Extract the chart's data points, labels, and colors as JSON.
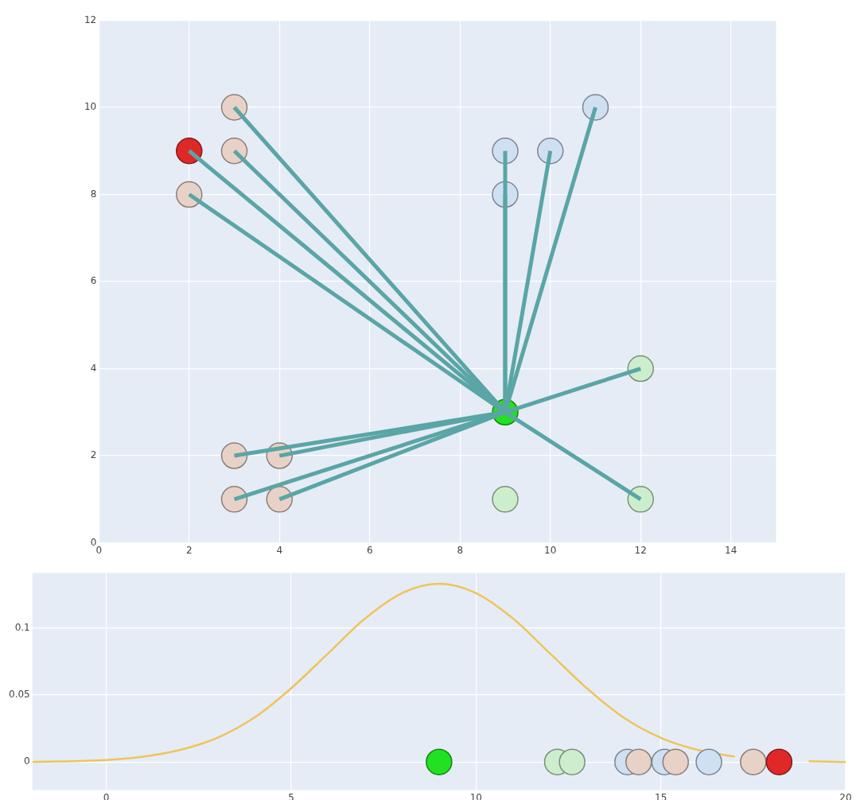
{
  "chart_data": [
    {
      "type": "scatter",
      "xlim": [
        0,
        15
      ],
      "ylim": [
        0,
        12
      ],
      "xticks": [
        0,
        2,
        4,
        6,
        8,
        10,
        12,
        14
      ],
      "yticks": [
        0,
        2,
        4,
        6,
        8,
        10,
        12
      ],
      "grid": true,
      "legend": false,
      "series": [
        {
          "marker": "circle",
          "color": "#e8d2c8",
          "x": [
            3,
            3,
            2,
            3,
            4,
            3,
            4
          ],
          "values": [
            10,
            9,
            8,
            2,
            2,
            1,
            1
          ]
        },
        {
          "marker": "circle",
          "color": "#e02828",
          "x": [
            2
          ],
          "values": [
            9
          ]
        },
        {
          "marker": "circle",
          "color": "#cfe0f2",
          "x": [
            9,
            10,
            9,
            11
          ],
          "values": [
            9,
            9,
            8,
            10
          ]
        },
        {
          "marker": "circle",
          "color": "#cdeecd",
          "x": [
            12,
            9,
            12
          ],
          "values": [
            4,
            1,
            1
          ]
        },
        {
          "marker": "circle",
          "color": "#22e022",
          "x": [
            9
          ],
          "values": [
            3
          ]
        },
        {
          "type": "line",
          "marker": "none",
          "color": "#5aa5a5",
          "x": [
            9,
            3
          ],
          "values": [
            3,
            10
          ]
        },
        {
          "type": "line",
          "marker": "none",
          "color": "#5aa5a5",
          "x": [
            9,
            3
          ],
          "values": [
            3,
            9
          ]
        },
        {
          "type": "line",
          "marker": "none",
          "color": "#5aa5a5",
          "x": [
            9,
            2
          ],
          "values": [
            3,
            9
          ]
        },
        {
          "type": "line",
          "marker": "none",
          "color": "#5aa5a5",
          "x": [
            9,
            2
          ],
          "values": [
            3,
            8
          ]
        },
        {
          "type": "line",
          "marker": "none",
          "color": "#5aa5a5",
          "x": [
            9,
            9
          ],
          "values": [
            3,
            9
          ]
        },
        {
          "type": "line",
          "marker": "none",
          "color": "#5aa5a5",
          "x": [
            9,
            9
          ],
          "values": [
            3,
            8
          ]
        },
        {
          "type": "line",
          "marker": "none",
          "color": "#5aa5a5",
          "x": [
            9,
            10
          ],
          "values": [
            3,
            9
          ]
        },
        {
          "type": "line",
          "marker": "none",
          "color": "#5aa5a5",
          "x": [
            9,
            11
          ],
          "values": [
            3,
            10
          ]
        },
        {
          "type": "line",
          "marker": "none",
          "color": "#5aa5a5",
          "x": [
            9,
            12
          ],
          "values": [
            3,
            4
          ]
        },
        {
          "type": "line",
          "marker": "none",
          "color": "#5aa5a5",
          "x": [
            9,
            12
          ],
          "values": [
            3,
            1
          ]
        },
        {
          "type": "line",
          "marker": "none",
          "color": "#5aa5a5",
          "x": [
            9,
            3
          ],
          "values": [
            3,
            2
          ]
        },
        {
          "type": "line",
          "marker": "none",
          "color": "#5aa5a5",
          "x": [
            9,
            4
          ],
          "values": [
            3,
            2
          ]
        },
        {
          "type": "line",
          "marker": "none",
          "color": "#5aa5a5",
          "x": [
            9,
            3
          ],
          "values": [
            3,
            1
          ]
        },
        {
          "type": "line",
          "marker": "none",
          "color": "#5aa5a5",
          "x": [
            9,
            4
          ],
          "values": [
            3,
            1
          ]
        }
      ]
    },
    {
      "type": "line",
      "xlim": [
        -2,
        20
      ],
      "ylim": [
        -0.021,
        0.141
      ],
      "xticks": [
        0,
        5,
        10,
        15,
        20
      ],
      "yticks": [
        0,
        0.05,
        0.1
      ],
      "grid": true,
      "legend": false,
      "series": [
        {
          "marker": "none",
          "color": "#f0c45a",
          "x": [
            -2,
            0,
            1,
            2,
            3,
            4,
            5,
            6,
            7,
            8,
            9,
            10,
            11,
            12,
            13,
            14,
            15,
            16,
            17,
            18,
            19,
            20
          ],
          "values": [
            0,
            0.0015,
            0.004,
            0.009,
            0.018,
            0.033,
            0.055,
            0.081,
            0.107,
            0.126,
            0.133,
            0.126,
            0.107,
            0.081,
            0.055,
            0.033,
            0.018,
            0.009,
            0.004,
            null,
            0.0005,
            0
          ]
        },
        {
          "type": "scatter",
          "marker": "circle",
          "color": "#cdeecd",
          "x": [
            12.2,
            12.6
          ],
          "values": [
            0,
            0
          ]
        },
        {
          "type": "scatter",
          "marker": "circle",
          "color": "#cfe0f2",
          "x": [
            14.1,
            15.1,
            16.3
          ],
          "values": [
            0,
            0,
            0
          ]
        },
        {
          "type": "scatter",
          "marker": "circle",
          "color": "#e8d2c8",
          "x": [
            14.4,
            15.4,
            17.5
          ],
          "values": [
            0,
            0,
            0
          ]
        },
        {
          "type": "scatter",
          "marker": "circle",
          "color": "#22e022",
          "x": [
            9
          ],
          "values": [
            0
          ]
        },
        {
          "type": "scatter",
          "marker": "circle",
          "color": "#e02828",
          "x": [
            18.2
          ],
          "values": [
            0
          ]
        }
      ]
    }
  ]
}
